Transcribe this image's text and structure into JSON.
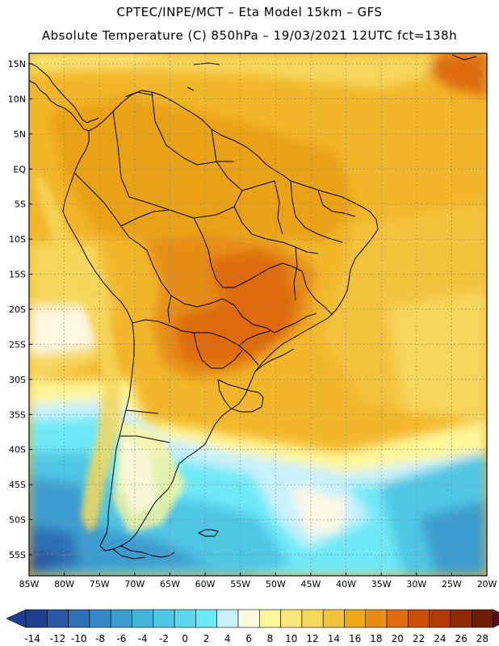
{
  "header": {
    "line1": "CPTEC/INPE/MCT –   Eta Model 15km – GFS",
    "line2": "Absolute Temperature (C) 850hPa – 19/03/2021 12UTC fct=138h"
  },
  "axes": {
    "lat_labels": [
      "15N",
      "10N",
      "5N",
      "EQ",
      "5S",
      "10S",
      "15S",
      "20S",
      "25S",
      "30S",
      "35S",
      "40S",
      "45S",
      "50S",
      "55S"
    ],
    "lat_values": [
      15,
      10,
      5,
      0,
      -5,
      -10,
      -15,
      -20,
      -25,
      -30,
      -35,
      -40,
      -45,
      -50,
      -55
    ],
    "lon_labels": [
      "85W",
      "80W",
      "75W",
      "70W",
      "65W",
      "60W",
      "55W",
      "50W",
      "45W",
      "40W",
      "35W",
      "30W",
      "25W",
      "20W"
    ],
    "lon_values": [
      -85,
      -80,
      -75,
      -70,
      -65,
      -60,
      -55,
      -50,
      -45,
      -40,
      -35,
      -30,
      -25,
      -20
    ],
    "lon_range": [
      -85,
      -20
    ],
    "lat_range": [
      -58,
      16.5
    ]
  },
  "colorbar": {
    "labels": [
      "-14",
      "-12",
      "-10",
      "-8",
      "-6",
      "-4",
      "-2",
      "0",
      "2",
      "4",
      "6",
      "8",
      "10",
      "12",
      "14",
      "16",
      "18",
      "20",
      "22",
      "24",
      "26",
      "28"
    ],
    "colors": [
      "#1f3f8c",
      "#2a58a2",
      "#2f6fb4",
      "#3686c3",
      "#3d9ccf",
      "#45b2da",
      "#4fc6e4",
      "#5cd8ee",
      "#6ee8f7",
      "#c8f1fb",
      "#fff8e3",
      "#fff59a",
      "#fbe67a",
      "#f6d65b",
      "#f2c23c",
      "#eeaa17",
      "#e68d12",
      "#dd6a0c",
      "#c94f07",
      "#b03a04",
      "#8e2a03",
      "#6e1d02"
    ]
  }
}
